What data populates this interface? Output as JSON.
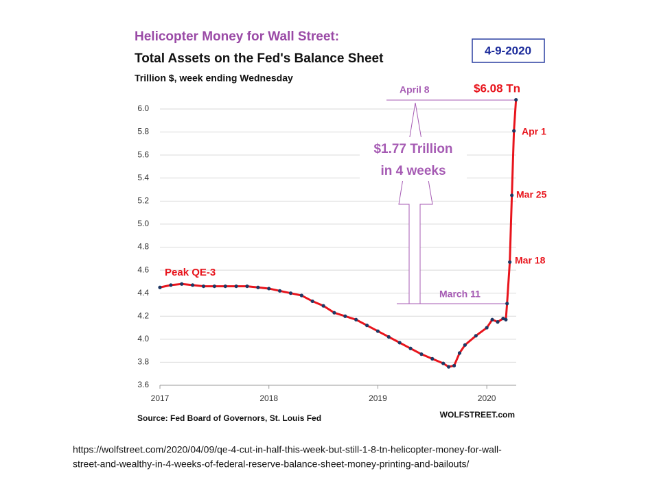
{
  "chart_data": {
    "type": "line",
    "title": "Helicopter Money for Wall Street:",
    "subtitle": "Total Assets on the Fed's Balance Sheet",
    "y_label": "Trillion $, week ending Wednesday",
    "date_badge": "4-9-2020",
    "source": "Source: Fed Board of Governors, St. Louis Fed",
    "brand": "WOLFSTREET.com",
    "url": [
      "https://wolfstreet.com/2020/04/09/qe-4-cut-in-half-this-week-but-still-1-8-tn-helicopter-money-for-wall-",
      "street-and-wealthy-in-4-weeks-of-federal-reserve-balance-sheet-money-printing-and-bailouts/"
    ],
    "annotations": [
      "Peak QE-3",
      "April 8",
      "$6.08 Tn",
      "Apr 1",
      "Mar 25",
      "Mar 18",
      "March 11",
      "$1.77 Trillion",
      "in 4 weeks"
    ],
    "x": [
      2017.0,
      2017.1,
      2017.2,
      2017.3,
      2017.4,
      2017.5,
      2017.6,
      2017.7,
      2017.8,
      2017.9,
      2018.0,
      2018.1,
      2018.2,
      2018.3,
      2018.4,
      2018.5,
      2018.6,
      2018.7,
      2018.8,
      2018.9,
      2019.0,
      2019.1,
      2019.2,
      2019.3,
      2019.4,
      2019.5,
      2019.6,
      2019.65,
      2019.7,
      2019.75,
      2019.8,
      2019.9,
      2020.0,
      2020.05,
      2020.1,
      2020.15,
      2020.175,
      2020.186,
      2020.211,
      2020.23,
      2020.249,
      2020.268
    ],
    "series": [
      {
        "color": "#e8141c",
        "marker_color": "#1f3864",
        "values": [
          4.45,
          4.47,
          4.48,
          4.47,
          4.46,
          4.46,
          4.46,
          4.46,
          4.46,
          4.45,
          4.44,
          4.42,
          4.4,
          4.38,
          4.33,
          4.29,
          4.23,
          4.2,
          4.17,
          4.12,
          4.07,
          4.02,
          3.97,
          3.92,
          3.87,
          3.83,
          3.79,
          3.76,
          3.77,
          3.88,
          3.95,
          4.03,
          4.1,
          4.17,
          4.15,
          4.18,
          4.17,
          4.31,
          4.67,
          5.25,
          5.81,
          6.08
        ]
      }
    ],
    "xlim": [
      2017.0,
      2020.27
    ],
    "xticks": [
      2017,
      2018,
      2019,
      2020
    ],
    "ylim": [
      3.6,
      6.1
    ],
    "yticks": [
      3.6,
      3.8,
      {
        "value": 4.0,
        "label": "4.0"
      },
      4.2,
      4.4,
      4.6,
      4.8,
      {
        "value": 5.0,
        "label": "5.0"
      },
      5.2,
      5.4,
      5.6,
      5.8,
      {
        "value": 6.0,
        "label": "6.0"
      }
    ],
    "grid": true
  }
}
